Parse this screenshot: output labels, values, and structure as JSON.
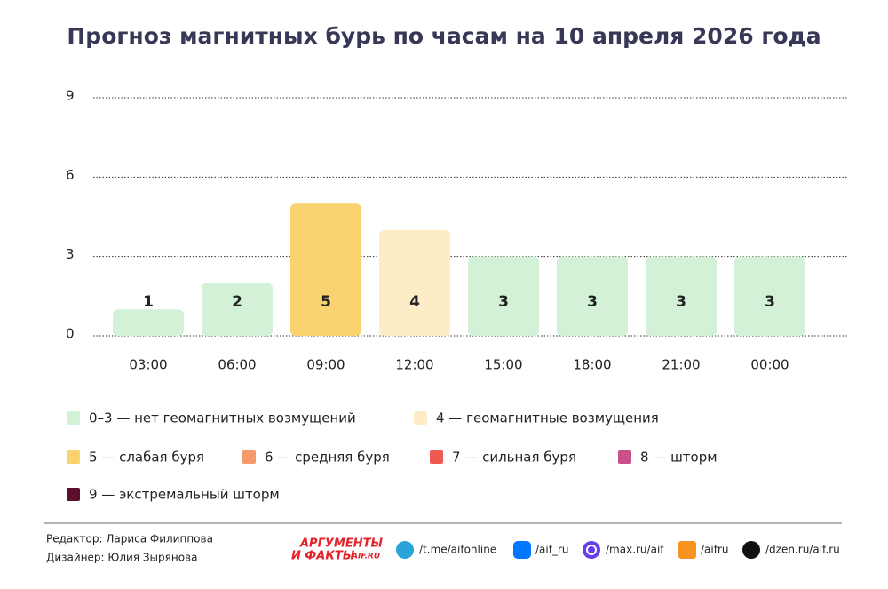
{
  "chart_data": {
    "type": "bar",
    "title": "Прогноз магнитных бурь по часам на 10 апреля 2026 года",
    "categories": [
      "03:00",
      "06:00",
      "09:00",
      "12:00",
      "15:00",
      "18:00",
      "21:00",
      "00:00"
    ],
    "values": [
      1,
      2,
      5,
      4,
      3,
      3,
      3,
      3
    ],
    "colors": [
      "#d3f1d6",
      "#d3f1d6",
      "#f9d36f",
      "#fdecc6",
      "#d3f1d6",
      "#d3f1d6",
      "#d3f1d6",
      "#d3f1d6"
    ],
    "ylim": [
      0,
      9
    ],
    "yticks": [
      0,
      3,
      6,
      9
    ],
    "grid": true,
    "legend": [
      {
        "label": "0–3 — нет геомагнитных возмущений",
        "color": "#d3f1d6"
      },
      {
        "label": "4 — геомагнитные возмущения",
        "color": "#fdecc6"
      },
      {
        "label": "5 — слабая буря",
        "color": "#f9d36f"
      },
      {
        "label": "6 — средняя буря",
        "color": "#f49a6c"
      },
      {
        "label": "7 — сильная буря",
        "color": "#ee5a52"
      },
      {
        "label": "8 — шторм",
        "color": "#c9508a"
      },
      {
        "label": "9 — экстремальный шторм",
        "color": "#5a0f2c"
      }
    ]
  },
  "footer": {
    "credits": [
      "Редактор: Лариса Филиппова",
      "Дизайнер: Юлия Зырянова"
    ],
    "logo": [
      "АРГУМЕНТЫ",
      "И ФАКТЫ",
      "AIF.RU"
    ],
    "links": [
      "/t.me/aifonline",
      "/aif_ru",
      "/max.ru/aif",
      "/aifru",
      "/dzen.ru/aif.ru"
    ]
  }
}
